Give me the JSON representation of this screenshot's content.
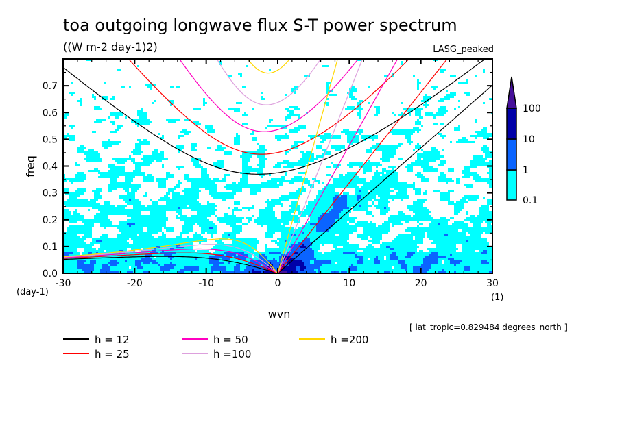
{
  "chart_data": {
    "type": "heatmap",
    "title": "toa outgoing longwave flux S-T power spectrum",
    "subtitle": "((W m-2 day-1)2)",
    "dataset_label": "LASG_peaked",
    "xlabel": "wvn",
    "xunits": "(1)",
    "ylabel": "freq",
    "yunits": "(day-1)",
    "xlim": [
      -30,
      30
    ],
    "ylim": [
      0,
      0.8
    ],
    "xticks": [
      "-30",
      "-20",
      "-10",
      "0",
      "10",
      "20",
      "30"
    ],
    "yticks": [
      "0.0",
      "0.1",
      "0.2",
      "0.3",
      "0.4",
      "0.5",
      "0.6",
      "0.7"
    ],
    "footnote": "[ lat_tropic=0.829484 degrees_north ]",
    "colorbar": {
      "levels": [
        "0.1",
        "1",
        "10",
        "100"
      ],
      "colors": [
        "#00ffff",
        "#0a64ff",
        "#0000a8",
        "#46109a"
      ],
      "extend": "max"
    },
    "dispersion_curves": [
      {
        "name": "h = 12",
        "h": 12,
        "color": "#000000"
      },
      {
        "name": "h = 25",
        "h": 25,
        "color": "#ff0000"
      },
      {
        "name": "h = 50",
        "h": 50,
        "color": "#ff00c0"
      },
      {
        "name": "h =100",
        "h": 100,
        "color": "#dda0dd"
      },
      {
        "name": "h =200",
        "h": 200,
        "color": "#ffd700"
      }
    ]
  }
}
